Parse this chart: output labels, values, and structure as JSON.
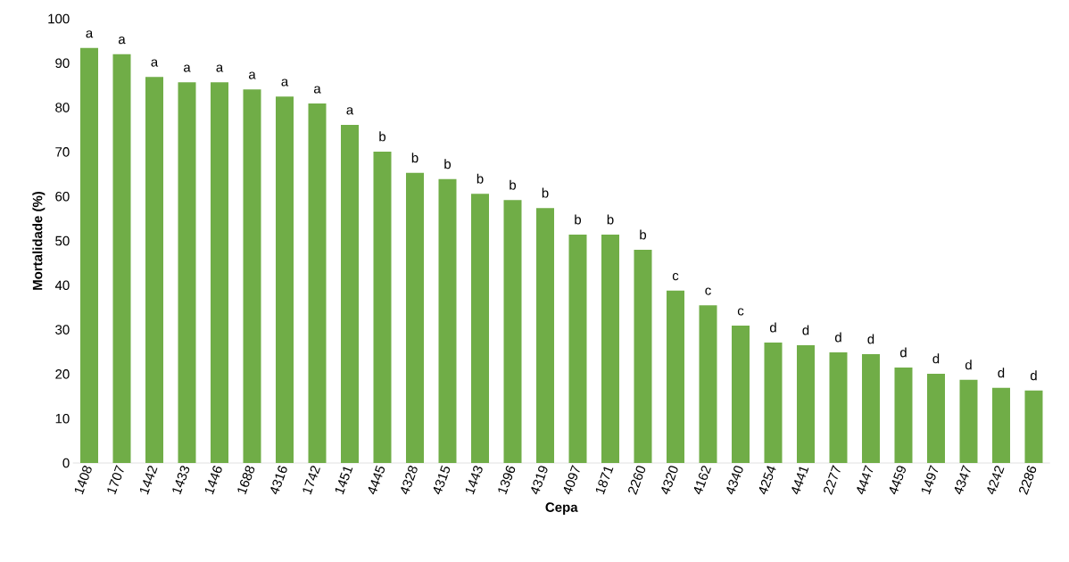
{
  "chart_data": {
    "type": "bar",
    "xlabel": "Cepa",
    "ylabel": "Mortalidade (%)",
    "categories": [
      "1408",
      "1707",
      "1442",
      "1433",
      "1446",
      "1688",
      "4316",
      "1742",
      "1451",
      "4445",
      "4328",
      "4315",
      "1443",
      "1396",
      "4319",
      "4097",
      "1871",
      "2260",
      "4320",
      "4162",
      "4340",
      "4254",
      "4441",
      "2277",
      "4447",
      "4459",
      "1497",
      "4347",
      "4242",
      "2286"
    ],
    "values": [
      93.4,
      92.0,
      86.9,
      85.7,
      85.7,
      84.1,
      82.5,
      80.9,
      76.1,
      70.1,
      65.3,
      63.9,
      60.6,
      59.2,
      57.4,
      51.4,
      51.4,
      48.0,
      38.8,
      35.5,
      30.9,
      27.1,
      26.5,
      24.9,
      24.5,
      21.5,
      20.1,
      18.7,
      16.9,
      16.3
    ],
    "value_labels": [
      "a",
      "a",
      "a",
      "a",
      "a",
      "a",
      "a",
      "a",
      "a",
      "b",
      "b",
      "b",
      "b",
      "b",
      "b",
      "b",
      "b",
      "b",
      "c",
      "c",
      "c",
      "d",
      "d",
      "d",
      "d",
      "d",
      "d",
      "d",
      "d",
      "d"
    ],
    "color": "#70ad47",
    "ylim": [
      0,
      100
    ],
    "yticks": [
      0,
      10,
      20,
      30,
      40,
      50,
      60,
      70,
      80,
      90,
      100
    ]
  }
}
